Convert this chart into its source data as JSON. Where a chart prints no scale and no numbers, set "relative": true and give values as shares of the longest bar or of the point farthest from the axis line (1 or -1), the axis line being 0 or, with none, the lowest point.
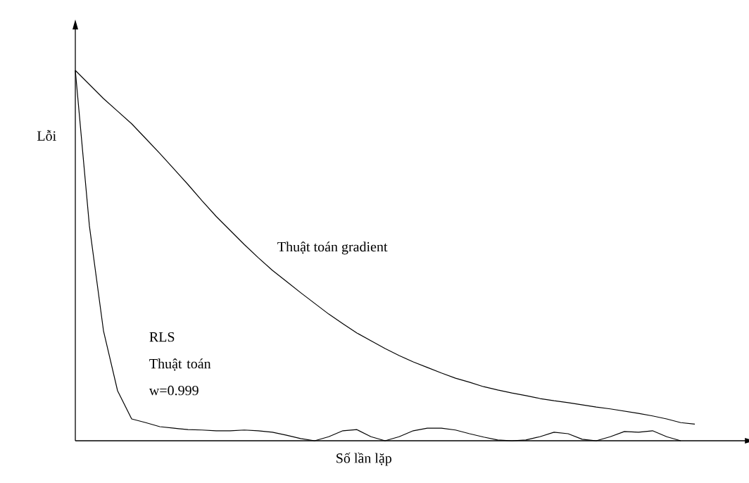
{
  "chart_data": {
    "type": "line",
    "relative": true,
    "xlabel": "Số lần lặp",
    "ylabel": "Lỗi",
    "legend": false,
    "marker": "none",
    "line_style": "solid",
    "categories": [
      null,
      null,
      null,
      null,
      null,
      null,
      null,
      null,
      null,
      null,
      null,
      null,
      null,
      null,
      null,
      null,
      null,
      null,
      null,
      null,
      null,
      null,
      null,
      null,
      null,
      null,
      null,
      null,
      null,
      null,
      null,
      null,
      null,
      null,
      null,
      null,
      null,
      null,
      null,
      null,
      null,
      null,
      null,
      null,
      null
    ],
    "series": [
      {
        "name": "Thuật toán gradient",
        "color": "#000000",
        "values": [
          1.0,
          0.962,
          0.924,
          0.89,
          0.856,
          0.816,
          0.776,
          0.734,
          0.692,
          0.648,
          0.606,
          0.568,
          0.53,
          0.494,
          0.46,
          0.43,
          0.4,
          0.371,
          0.342,
          0.316,
          0.291,
          0.27,
          0.249,
          0.23,
          0.213,
          0.198,
          0.183,
          0.169,
          0.158,
          0.146,
          0.137,
          0.129,
          0.122,
          0.114,
          0.108,
          0.103,
          0.097,
          0.091,
          0.086,
          0.08,
          0.074,
          0.067,
          0.059,
          0.049,
          0.045
        ]
      },
      {
        "name": "RLS Thuật toán w=0.999",
        "color": "#000000",
        "values": [
          1.0,
          0.58,
          0.297,
          0.135,
          0.059,
          0.049,
          0.038,
          0.034,
          0.03,
          0.029,
          0.027,
          0.027,
          0.029,
          0.027,
          0.023,
          0.015,
          0.006,
          0,
          0.011,
          0.027,
          0.03,
          0.011,
          0,
          0.011,
          0.027,
          0.034,
          0.034,
          0.029,
          0.019,
          0.01,
          0.002,
          0,
          0.002,
          0.011,
          0.023,
          0.019,
          0.004,
          0,
          0.011,
          0.025,
          0.023,
          0.027,
          0.011,
          0,
          null
        ]
      }
    ]
  }
}
